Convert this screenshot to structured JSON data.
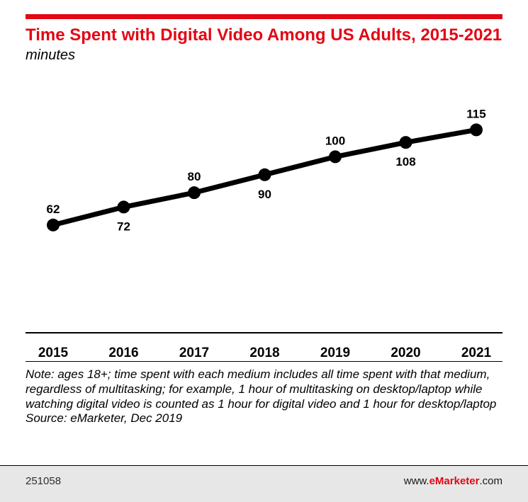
{
  "colors": {
    "accent": "#e30613",
    "line": "#000000",
    "footer_bg": "#e7e7e7"
  },
  "header": {
    "title": "Time Spent with Digital Video Among US Adults, 2015-2021",
    "subtitle": "minutes"
  },
  "chart_data": {
    "type": "line",
    "title": "Time Spent with Digital Video Among US Adults, 2015-2021",
    "ylabel": "minutes",
    "xlabel": "",
    "categories": [
      "2015",
      "2016",
      "2017",
      "2018",
      "2019",
      "2020",
      "2021"
    ],
    "values": [
      62,
      72,
      80,
      90,
      100,
      108,
      115
    ],
    "label_positions": [
      "above",
      "below",
      "above",
      "below",
      "above",
      "below",
      "above"
    ],
    "ylim": [
      0,
      140
    ],
    "grid": false,
    "legend": false,
    "line_color": "#000000",
    "marker": "circle"
  },
  "note": {
    "text": "Note: ages 18+; time spent with each medium includes all time spent with that medium, regardless of multitasking; for example, 1 hour of multitasking on desktop/laptop while watching digital video is counted as 1 hour for digital video and 1 hour for desktop/laptop",
    "source": "Source: eMarketer, Dec 2019"
  },
  "footer": {
    "chart_id": "251058",
    "url_prefix": "www.",
    "url_brand": "eMarketer",
    "url_suffix": ".com"
  }
}
